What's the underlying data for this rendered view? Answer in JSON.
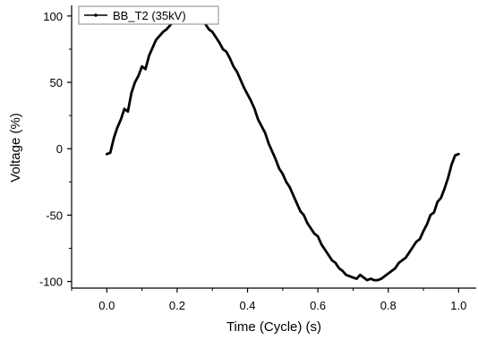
{
  "chart_data": {
    "type": "line",
    "xlabel": "Time (Cycle) (s)",
    "ylabel": "Voltage (%)",
    "xlim": [
      -0.1,
      1.05
    ],
    "ylim": [
      -105,
      108
    ],
    "xticks": [
      0.0,
      0.2,
      0.4,
      0.6,
      0.8,
      1.0
    ],
    "xtick_labels": [
      "0.0",
      "0.2",
      "0.4",
      "0.6",
      "0.8",
      "1.0"
    ],
    "yticks": [
      100,
      50,
      0,
      -50,
      -100
    ],
    "ytick_labels": [
      "100",
      "50",
      "0",
      "-50",
      "-100"
    ],
    "grid": false,
    "legend_position": "top-left",
    "series": [
      {
        "name": "BB_T2 (35kV)",
        "color": "#000000",
        "x": [
          0.0,
          0.01,
          0.02,
          0.03,
          0.04,
          0.05,
          0.06,
          0.07,
          0.08,
          0.09,
          0.1,
          0.11,
          0.12,
          0.13,
          0.14,
          0.15,
          0.16,
          0.17,
          0.18,
          0.19,
          0.2,
          0.21,
          0.22,
          0.23,
          0.24,
          0.25,
          0.26,
          0.27,
          0.28,
          0.29,
          0.3,
          0.31,
          0.32,
          0.33,
          0.34,
          0.35,
          0.36,
          0.37,
          0.38,
          0.39,
          0.4,
          0.41,
          0.42,
          0.43,
          0.44,
          0.45,
          0.46,
          0.47,
          0.48,
          0.49,
          0.5,
          0.51,
          0.52,
          0.53,
          0.54,
          0.55,
          0.56,
          0.57,
          0.58,
          0.59,
          0.6,
          0.61,
          0.62,
          0.63,
          0.64,
          0.65,
          0.66,
          0.67,
          0.68,
          0.69,
          0.7,
          0.71,
          0.72,
          0.73,
          0.74,
          0.75,
          0.76,
          0.77,
          0.78,
          0.79,
          0.8,
          0.81,
          0.82,
          0.83,
          0.84,
          0.85,
          0.86,
          0.87,
          0.88,
          0.89,
          0.9,
          0.91,
          0.92,
          0.93,
          0.94,
          0.95,
          0.96,
          0.97,
          0.98,
          0.99,
          1.0
        ],
        "values": [
          -4,
          -3,
          8,
          16,
          22,
          30,
          28,
          42,
          50,
          55,
          62,
          60,
          70,
          76,
          82,
          85,
          88,
          90,
          93,
          96,
          96,
          98,
          95,
          97,
          99,
          99,
          98,
          96,
          94,
          90,
          88,
          84,
          80,
          75,
          73,
          68,
          62,
          58,
          52,
          46,
          41,
          36,
          30,
          22,
          17,
          12,
          4,
          -2,
          -8,
          -15,
          -19,
          -25,
          -29,
          -35,
          -41,
          -47,
          -50,
          -56,
          -60,
          -64,
          -66,
          -72,
          -76,
          -80,
          -84,
          -86,
          -90,
          -92,
          -95,
          -96,
          -97,
          -98,
          -95,
          -97,
          -99,
          -98,
          -99,
          -99,
          -98,
          -96,
          -94,
          -92,
          -90,
          -86,
          -84,
          -82,
          -78,
          -74,
          -70,
          -68,
          -62,
          -57,
          -50,
          -48,
          -40,
          -37,
          -30,
          -22,
          -12,
          -5,
          -4
        ]
      }
    ]
  }
}
